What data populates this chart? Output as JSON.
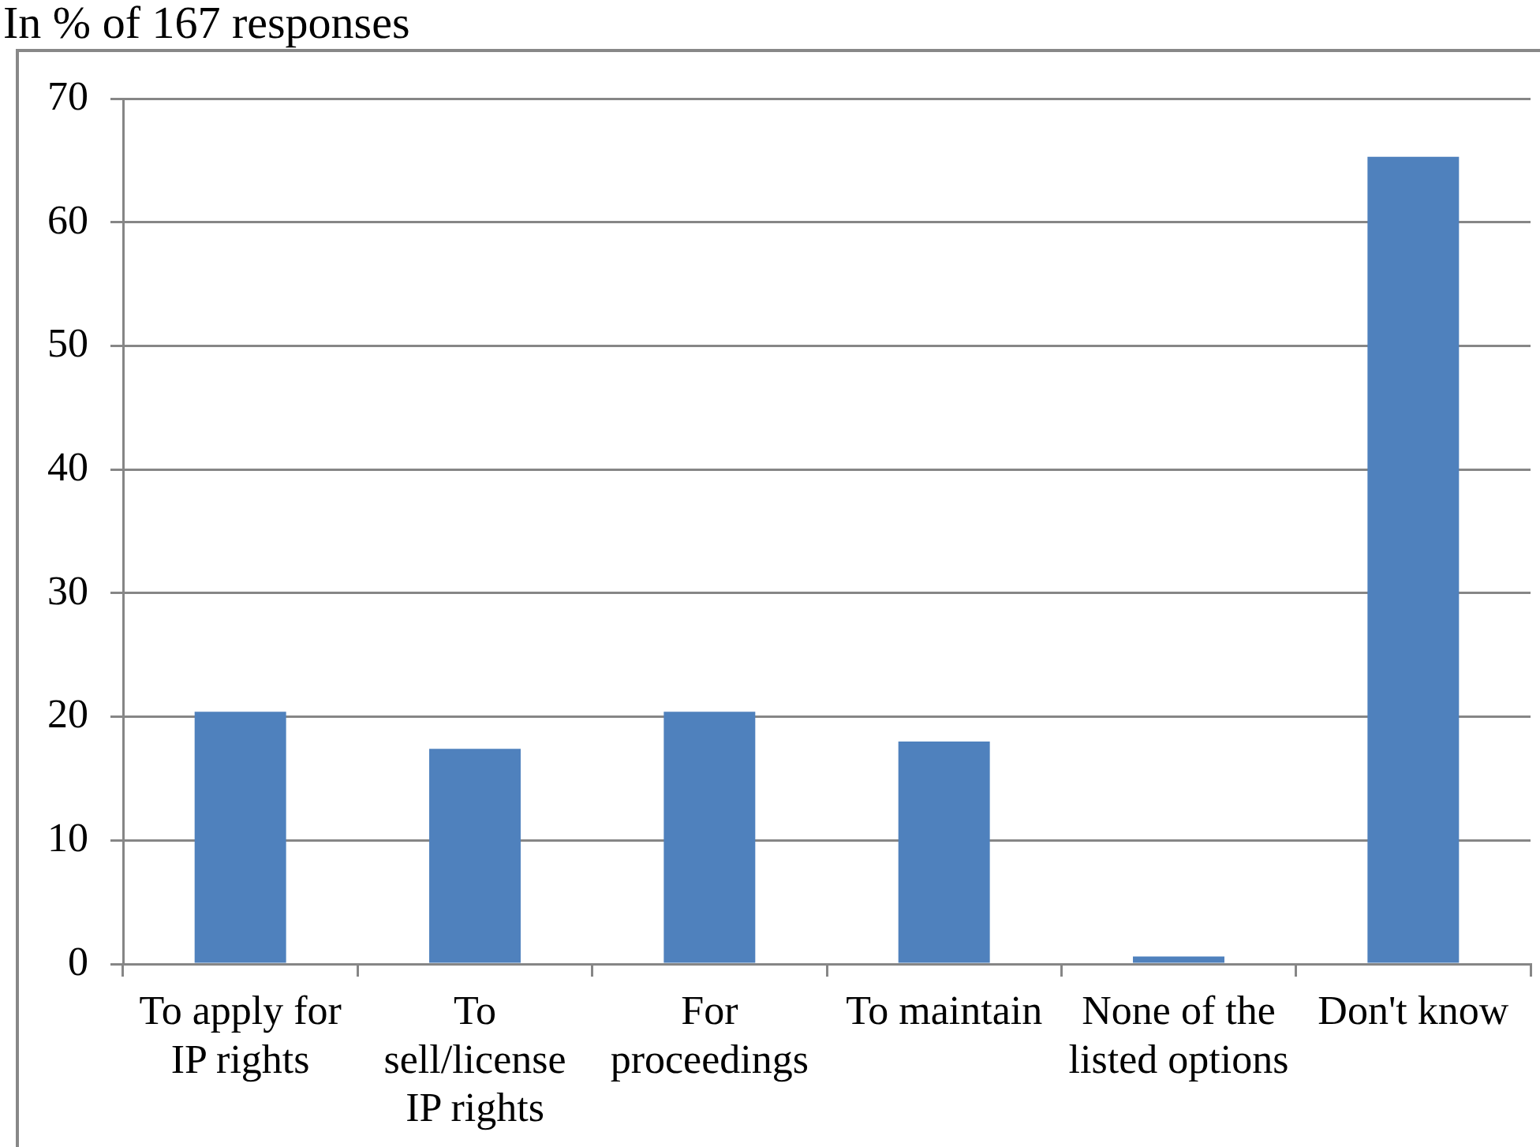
{
  "chart_data": {
    "type": "bar",
    "title": "In % of 167 responses",
    "categories": [
      "To apply for IP rights",
      "To sell/license IP rights",
      "For proceedings",
      "To maintain",
      "None of the listed options",
      "Don't know"
    ],
    "values": [
      20.4,
      17.4,
      20.4,
      18.0,
      0.6,
      65.3
    ],
    "color": "#4f81bd",
    "ylim": [
      0,
      70
    ],
    "yticks": [
      0,
      10,
      20,
      30,
      40,
      50,
      60,
      70
    ],
    "grid": "y"
  }
}
